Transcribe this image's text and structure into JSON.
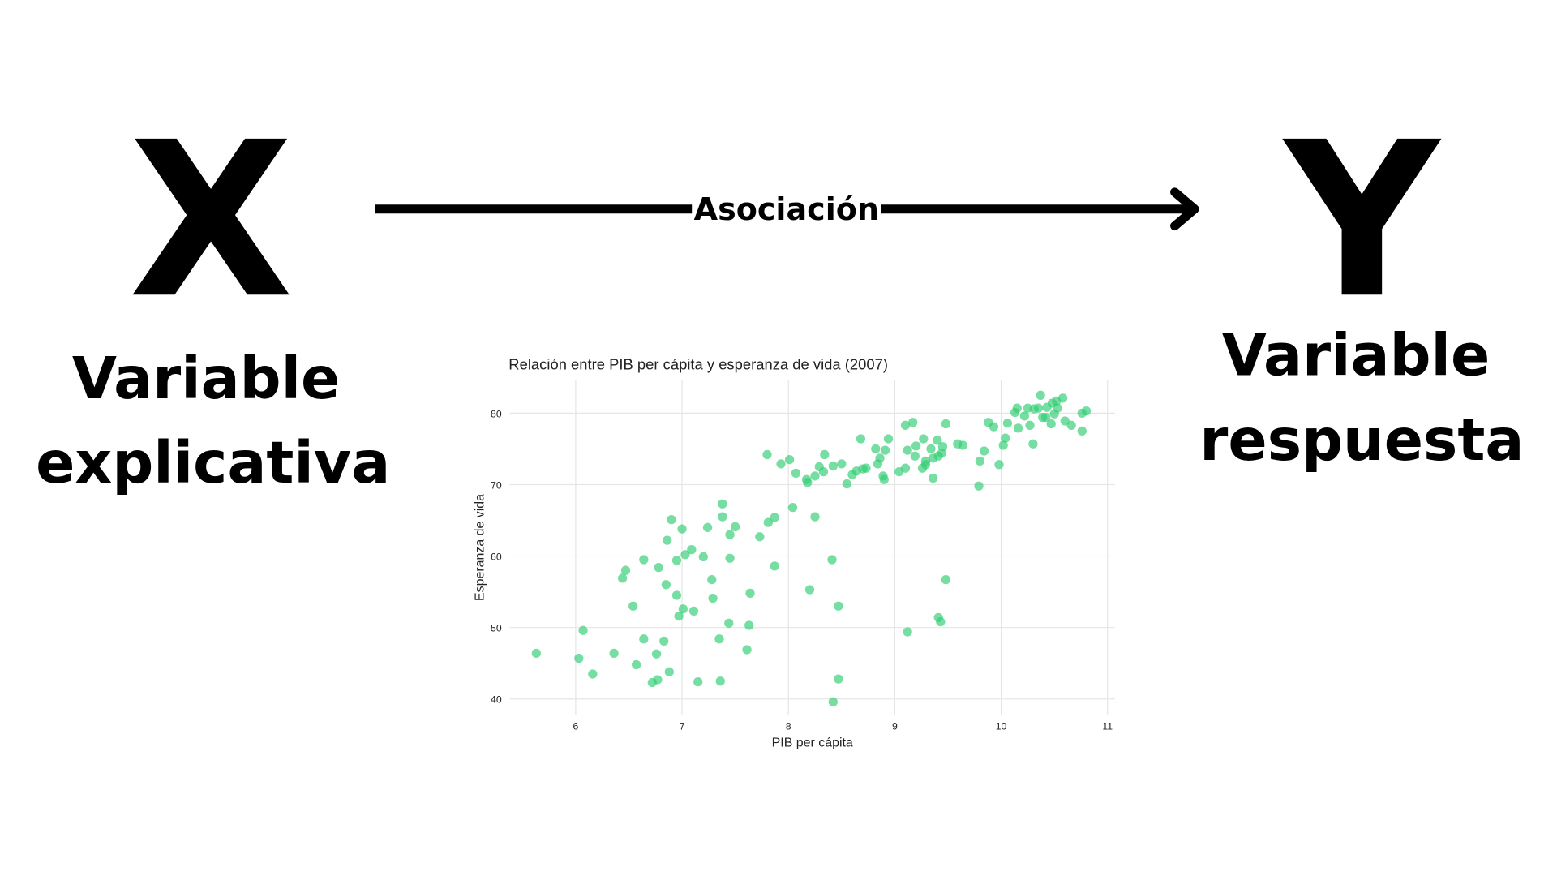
{
  "diagram": {
    "left": {
      "symbol": "X",
      "lines": [
        "Variable",
        "explicativa"
      ]
    },
    "arrow_label": "Asociación",
    "right": {
      "symbol": "Y",
      "lines": [
        "Variable",
        "respuesta"
      ]
    }
  },
  "chart_data": {
    "type": "scatter",
    "title": "Relación entre PIB per cápita y esperanza de vida (2007)",
    "xlabel": "PIB per cápita",
    "ylabel": "Esperanza de vida",
    "color": "#2ecc71",
    "grid": true,
    "xlim": [
      5.38,
      11.07
    ],
    "ylim": [
      37.8,
      84.6
    ],
    "xticks": [
      6,
      7,
      8,
      9,
      10,
      11
    ],
    "yticks": [
      40,
      50,
      60,
      70,
      80
    ],
    "x": [
      5.63,
      6.03,
      6.07,
      6.16,
      6.36,
      6.44,
      6.47,
      6.54,
      6.57,
      6.64,
      6.64,
      6.72,
      6.76,
      6.77,
      6.78,
      6.83,
      6.85,
      6.86,
      6.88,
      6.9,
      6.95,
      6.95,
      6.97,
      7.0,
      7.01,
      7.03,
      7.09,
      7.11,
      7.15,
      7.2,
      7.24,
      7.28,
      7.29,
      7.35,
      7.36,
      7.38,
      7.38,
      7.44,
      7.45,
      7.45,
      7.5,
      7.61,
      7.63,
      7.64,
      7.73,
      7.8,
      7.81,
      7.87,
      7.87,
      7.93,
      8.01,
      8.04,
      8.07,
      8.17,
      8.18,
      8.2,
      8.25,
      8.25,
      8.29,
      8.33,
      8.34,
      8.41,
      8.42,
      8.42,
      8.47,
      8.47,
      8.5,
      8.55,
      8.6,
      8.64,
      8.68,
      8.7,
      8.73,
      8.82,
      8.84,
      8.86,
      8.89,
      8.9,
      8.91,
      8.94,
      9.04,
      9.1,
      9.1,
      9.12,
      9.12,
      9.17,
      9.19,
      9.2,
      9.26,
      9.27,
      9.29,
      9.29,
      9.34,
      9.36,
      9.36,
      9.4,
      9.41,
      9.43,
      9.41,
      9.44,
      9.45,
      9.48,
      9.48,
      9.59,
      9.64,
      9.79,
      9.8,
      9.84,
      9.88,
      9.93,
      9.98,
      10.02,
      10.04,
      10.06,
      10.13,
      10.15,
      10.16,
      10.22,
      10.25,
      10.27,
      10.3,
      10.31,
      10.35,
      10.37,
      10.39,
      10.42,
      10.43,
      10.47,
      10.48,
      10.5,
      10.52,
      10.53,
      10.58,
      10.6,
      10.66,
      10.76,
      10.76,
      10.8
    ],
    "values": [
      46.4,
      45.7,
      49.6,
      43.5,
      46.4,
      56.9,
      58.0,
      53.0,
      44.8,
      59.5,
      48.4,
      42.3,
      46.3,
      42.7,
      58.4,
      48.1,
      56.0,
      62.2,
      43.8,
      65.1,
      54.5,
      59.4,
      51.6,
      63.8,
      52.6,
      60.2,
      60.9,
      52.3,
      42.4,
      59.9,
      64.0,
      56.7,
      54.1,
      48.4,
      42.5,
      67.3,
      65.5,
      50.6,
      63.0,
      59.7,
      64.1,
      46.9,
      50.3,
      54.8,
      62.7,
      74.2,
      64.7,
      65.4,
      58.6,
      72.9,
      73.5,
      66.8,
      71.6,
      70.7,
      70.3,
      55.3,
      71.2,
      65.5,
      72.5,
      71.8,
      74.2,
      59.5,
      72.6,
      39.6,
      42.8,
      53.0,
      72.9,
      70.1,
      71.4,
      71.9,
      76.4,
      72.2,
      72.3,
      75.0,
      72.9,
      73.7,
      71.2,
      70.7,
      74.8,
      76.4,
      71.8,
      78.3,
      72.3,
      49.4,
      74.8,
      78.7,
      74.0,
      75.4,
      72.3,
      76.4,
      73.3,
      72.8,
      75.0,
      73.7,
      70.9,
      76.2,
      51.4,
      50.8,
      74.0,
      74.4,
      75.3,
      78.5,
      56.7,
      75.7,
      75.5,
      69.8,
      73.3,
      74.7,
      78.7,
      78.1,
      72.8,
      75.5,
      76.5,
      78.6,
      80.1,
      80.7,
      77.9,
      79.6,
      80.7,
      78.3,
      75.7,
      80.6,
      80.7,
      82.5,
      79.4,
      79.4,
      80.8,
      78.5,
      81.4,
      79.9,
      81.7,
      80.7,
      82.1,
      78.9,
      78.3,
      77.5,
      80.0,
      80.3
    ]
  }
}
